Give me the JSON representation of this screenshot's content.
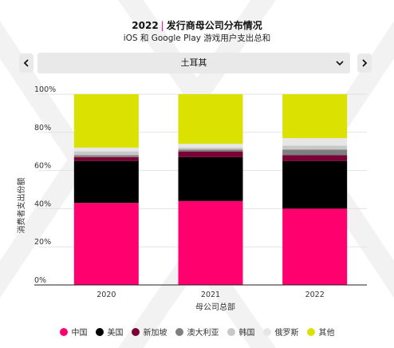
{
  "header": {
    "year": "2022",
    "separator": "|",
    "title": "发行商母公司分布情况",
    "subtitle": "iOS 和 Google Play 游戏用户支出总和"
  },
  "selector": {
    "value": "土耳其",
    "prev_icon": "chevron-left-icon",
    "next_icon": "chevron-right-icon",
    "dropdown_icon": "chevron-down-icon"
  },
  "chart_data": {
    "type": "bar",
    "stacked": true,
    "categories": [
      "2020",
      "2021",
      "2022"
    ],
    "series": [
      {
        "name": "中国",
        "color": "#ff006e",
        "values": [
          43,
          44,
          40
        ]
      },
      {
        "name": "美国",
        "color": "#000000",
        "values": [
          22,
          23,
          25
        ]
      },
      {
        "name": "新加坡",
        "color": "#7a0036",
        "values": [
          2,
          3,
          3
        ]
      },
      {
        "name": "澳大利亚",
        "color": "#7f7f7f",
        "values": [
          1,
          1,
          3
        ]
      },
      {
        "name": "韩国",
        "color": "#c8c8c8",
        "values": [
          2,
          1,
          2
        ]
      },
      {
        "name": "俄罗斯",
        "color": "#e6e6e6",
        "values": [
          2,
          2,
          4
        ]
      },
      {
        "name": "其他",
        "color": "#dbe100",
        "values": [
          28,
          26,
          23
        ]
      }
    ],
    "xlabel": "母公司总部",
    "ylabel": "消费者支出份额",
    "ylim": [
      0,
      100
    ],
    "yticks": [
      "0%",
      "20%",
      "40%",
      "60%",
      "80%",
      "100%"
    ],
    "grid": true,
    "legend_position": "bottom"
  }
}
